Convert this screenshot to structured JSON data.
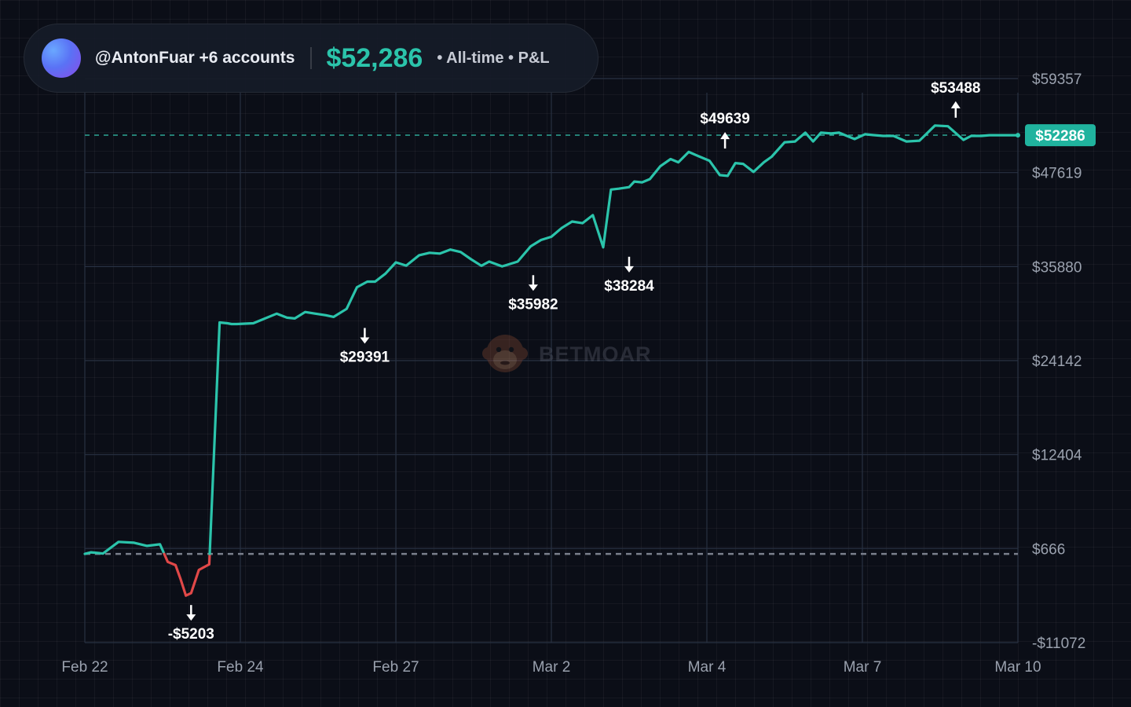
{
  "header": {
    "account_label": "@AntonFuar +6 accounts",
    "total_value": "$52,286",
    "period_label": "• All-time • P&L"
  },
  "watermark": {
    "text": "BETMOAR",
    "icon": "monkey-logo-icon"
  },
  "colors": {
    "positive": "#2bc4ab",
    "negative": "#e04848",
    "badge_bg": "#20b39e",
    "tick_text": "#9aa1ae",
    "annotation": "#ffffff"
  },
  "chart_data": {
    "type": "line",
    "title": "All-time P&L",
    "xlabel": "",
    "ylabel": "",
    "ylim": [
      -11072,
      59357
    ],
    "xlim": [
      0,
      18
    ],
    "grid": true,
    "x_ticks": [
      {
        "x": 0,
        "label": "Feb 22"
      },
      {
        "x": 3,
        "label": "Feb 24"
      },
      {
        "x": 6,
        "label": "Feb 27"
      },
      {
        "x": 9,
        "label": "Mar 2"
      },
      {
        "x": 12,
        "label": "Mar 4"
      },
      {
        "x": 15,
        "label": "Mar 7"
      },
      {
        "x": 18,
        "label": "Mar 10"
      }
    ],
    "y_ticks": [
      -11072,
      666,
      12404,
      24142,
      35880,
      47619,
      59357
    ],
    "y_tick_labels": [
      "-$11072",
      "$666",
      "$12404",
      "$24142",
      "$35880",
      "$47619",
      "$59357"
    ],
    "baseline": 0,
    "current_value": 52286,
    "current_label": "$52286",
    "series": [
      {
        "name": "P&L",
        "x": [
          0,
          0.12,
          0.35,
          0.65,
          0.95,
          1.2,
          1.45,
          1.6,
          1.75,
          1.85,
          1.95,
          2.05,
          2.2,
          2.4,
          2.6,
          2.75,
          2.83,
          2.93,
          3.25,
          3.7,
          3.9,
          4.05,
          4.25,
          4.45,
          4.65,
          4.8,
          5.05,
          5.25,
          5.45,
          5.6,
          5.8,
          6.0,
          6.2,
          6.45,
          6.65,
          6.85,
          7.05,
          7.25,
          7.45,
          7.65,
          7.8,
          8.05,
          8.35,
          8.6,
          8.8,
          9.0,
          9.2,
          9.4,
          9.6,
          9.8,
          10.0,
          10.15,
          10.3,
          10.5,
          10.6,
          10.75,
          10.9,
          11.1,
          11.3,
          11.45,
          11.65,
          11.85,
          12.05,
          12.25,
          12.4,
          12.55,
          12.7,
          12.9,
          13.1,
          13.25,
          13.5,
          13.7,
          13.9,
          14.05,
          14.2,
          14.4,
          14.55,
          14.7,
          14.85,
          15.05,
          15.2,
          15.4,
          15.6,
          15.85,
          16.1,
          16.4,
          16.65,
          16.95,
          17.1,
          17.3,
          17.45,
          17.7,
          18.0
        ],
        "y": [
          0,
          200,
          50,
          1500,
          1400,
          1000,
          1200,
          -1000,
          -1400,
          -3200,
          -5203,
          -4900,
          -2000,
          -1300,
          28900,
          28800,
          28700,
          28700,
          28800,
          30000,
          29500,
          29400,
          30200,
          30000,
          29800,
          29600,
          30600,
          33300,
          34000,
          34000,
          35000,
          36400,
          36000,
          37300,
          37600,
          37500,
          38000,
          37700,
          36800,
          35982,
          36500,
          35900,
          36500,
          38400,
          39200,
          39600,
          40700,
          41500,
          41300,
          42300,
          38284,
          45500,
          45600,
          45800,
          46500,
          46400,
          46800,
          48400,
          49300,
          48900,
          50200,
          49639,
          49100,
          47300,
          47200,
          48800,
          48700,
          47700,
          48900,
          49600,
          51400,
          51500,
          52600,
          51500,
          52600,
          52500,
          52600,
          52200,
          51800,
          52400,
          52300,
          52200,
          52200,
          51500,
          51600,
          53488,
          53400,
          51700,
          52200,
          52200,
          52286,
          52286,
          52286
        ]
      }
    ],
    "annotations": [
      {
        "x": 2.05,
        "value": -5203,
        "label": "-$5203",
        "direction": "down"
      },
      {
        "x": 5.4,
        "value": 29391,
        "label": "$29391",
        "direction": "down"
      },
      {
        "x": 8.65,
        "value": 35982,
        "label": "$35982",
        "direction": "down"
      },
      {
        "x": 10.5,
        "value": 38284,
        "label": "$38284",
        "direction": "down"
      },
      {
        "x": 12.35,
        "value": 49639,
        "label": "$49639",
        "direction": "up"
      },
      {
        "x": 16.8,
        "value": 53488,
        "label": "$53488",
        "direction": "up"
      }
    ]
  }
}
